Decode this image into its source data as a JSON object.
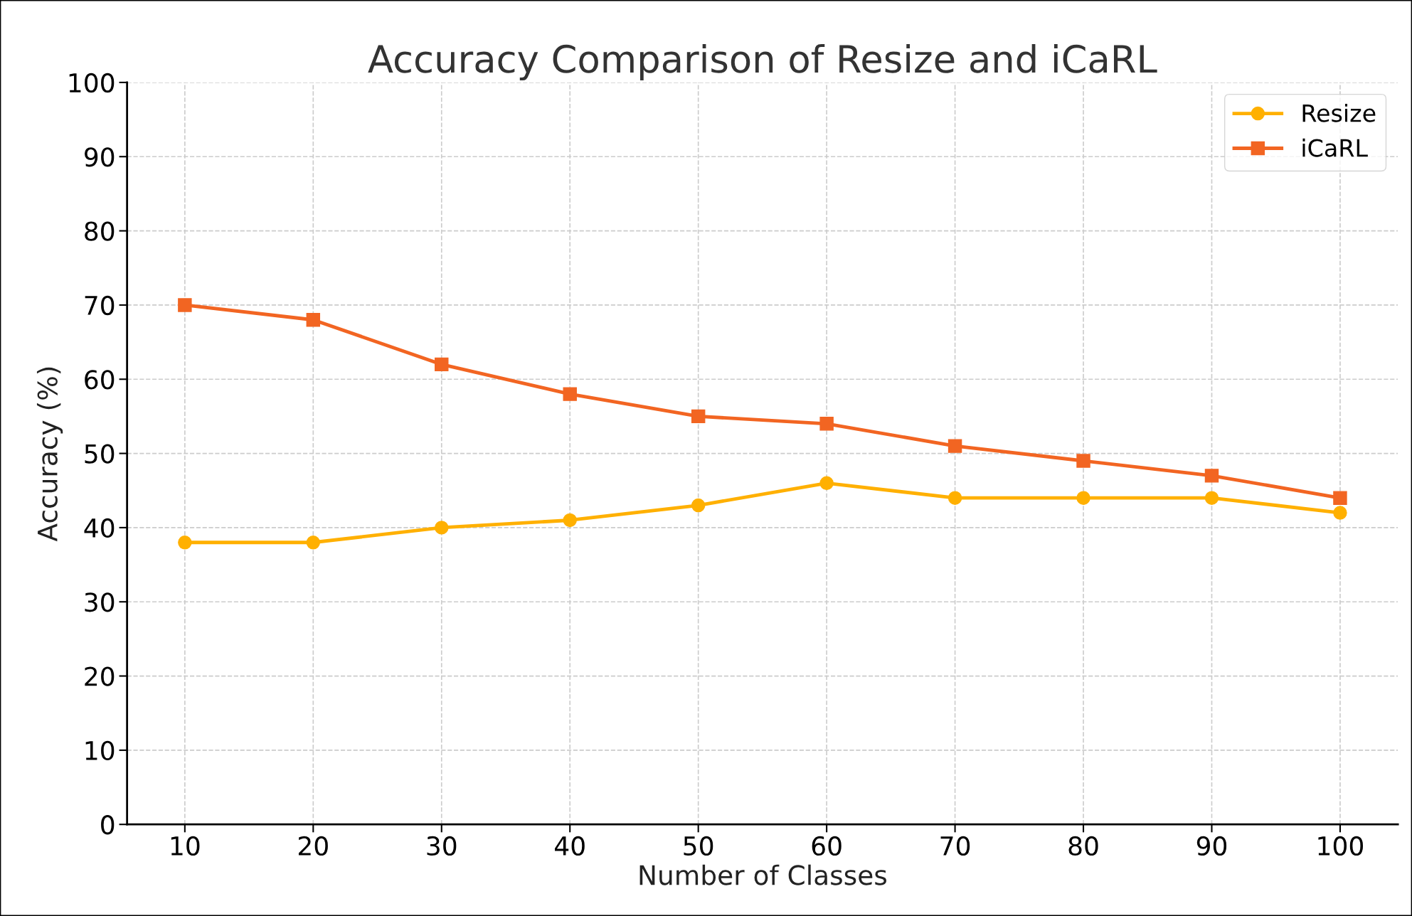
{
  "chart_data": {
    "type": "line",
    "title": "Accuracy Comparison of Resize and iCaRL",
    "xlabel": "Number of Classes",
    "ylabel": "Accuracy (%)",
    "x": [
      10,
      20,
      30,
      40,
      50,
      60,
      70,
      80,
      90,
      100
    ],
    "series": [
      {
        "name": "Resize",
        "color": "#ffb000",
        "marker": "circle",
        "values": [
          38,
          38,
          40,
          41,
          43,
          46,
          44,
          44,
          44,
          42
        ]
      },
      {
        "name": "iCaRL",
        "color": "#f26522",
        "marker": "square",
        "values": [
          70,
          68,
          62,
          58,
          55,
          54,
          51,
          49,
          47,
          44
        ]
      }
    ],
    "xlim": [
      5.5,
      104.5
    ],
    "xticks": [
      10,
      20,
      30,
      40,
      50,
      60,
      70,
      80,
      90,
      100
    ],
    "ylim": [
      0,
      100
    ],
    "yticks": [
      0,
      10,
      20,
      30,
      40,
      50,
      60,
      70,
      80,
      90,
      100
    ],
    "grid": true,
    "legend": "top right",
    "line_style": "solid"
  }
}
